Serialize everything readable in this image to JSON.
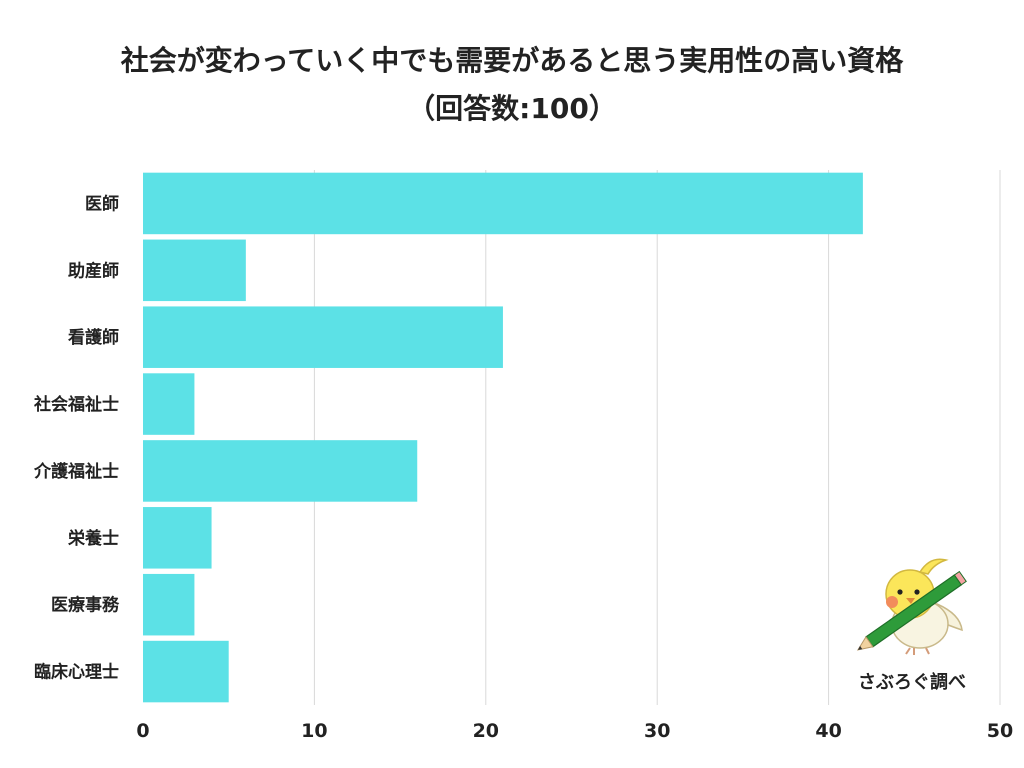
{
  "title": {
    "line1": "社会が変わっていく中でも需要があると思う実用性の高い資格",
    "line2": "（回答数:100）"
  },
  "chart_data": {
    "type": "bar",
    "orientation": "horizontal",
    "categories": [
      "医師",
      "助産師",
      "看護師",
      "社会福祉士",
      "介護福祉士",
      "栄養士",
      "医療事務",
      "臨床心理士"
    ],
    "values": [
      42,
      6,
      21,
      3,
      16,
      4,
      3,
      5
    ],
    "xlim": [
      0,
      50
    ],
    "xticks": [
      0,
      10,
      20,
      30,
      40,
      50
    ],
    "grid": true,
    "bar_color": "#5ce1e6",
    "grid_color": "#d9d9d9"
  },
  "credit": {
    "text": "さぶろぐ調べ",
    "mascot_icon": "bird-with-pencil-icon"
  }
}
